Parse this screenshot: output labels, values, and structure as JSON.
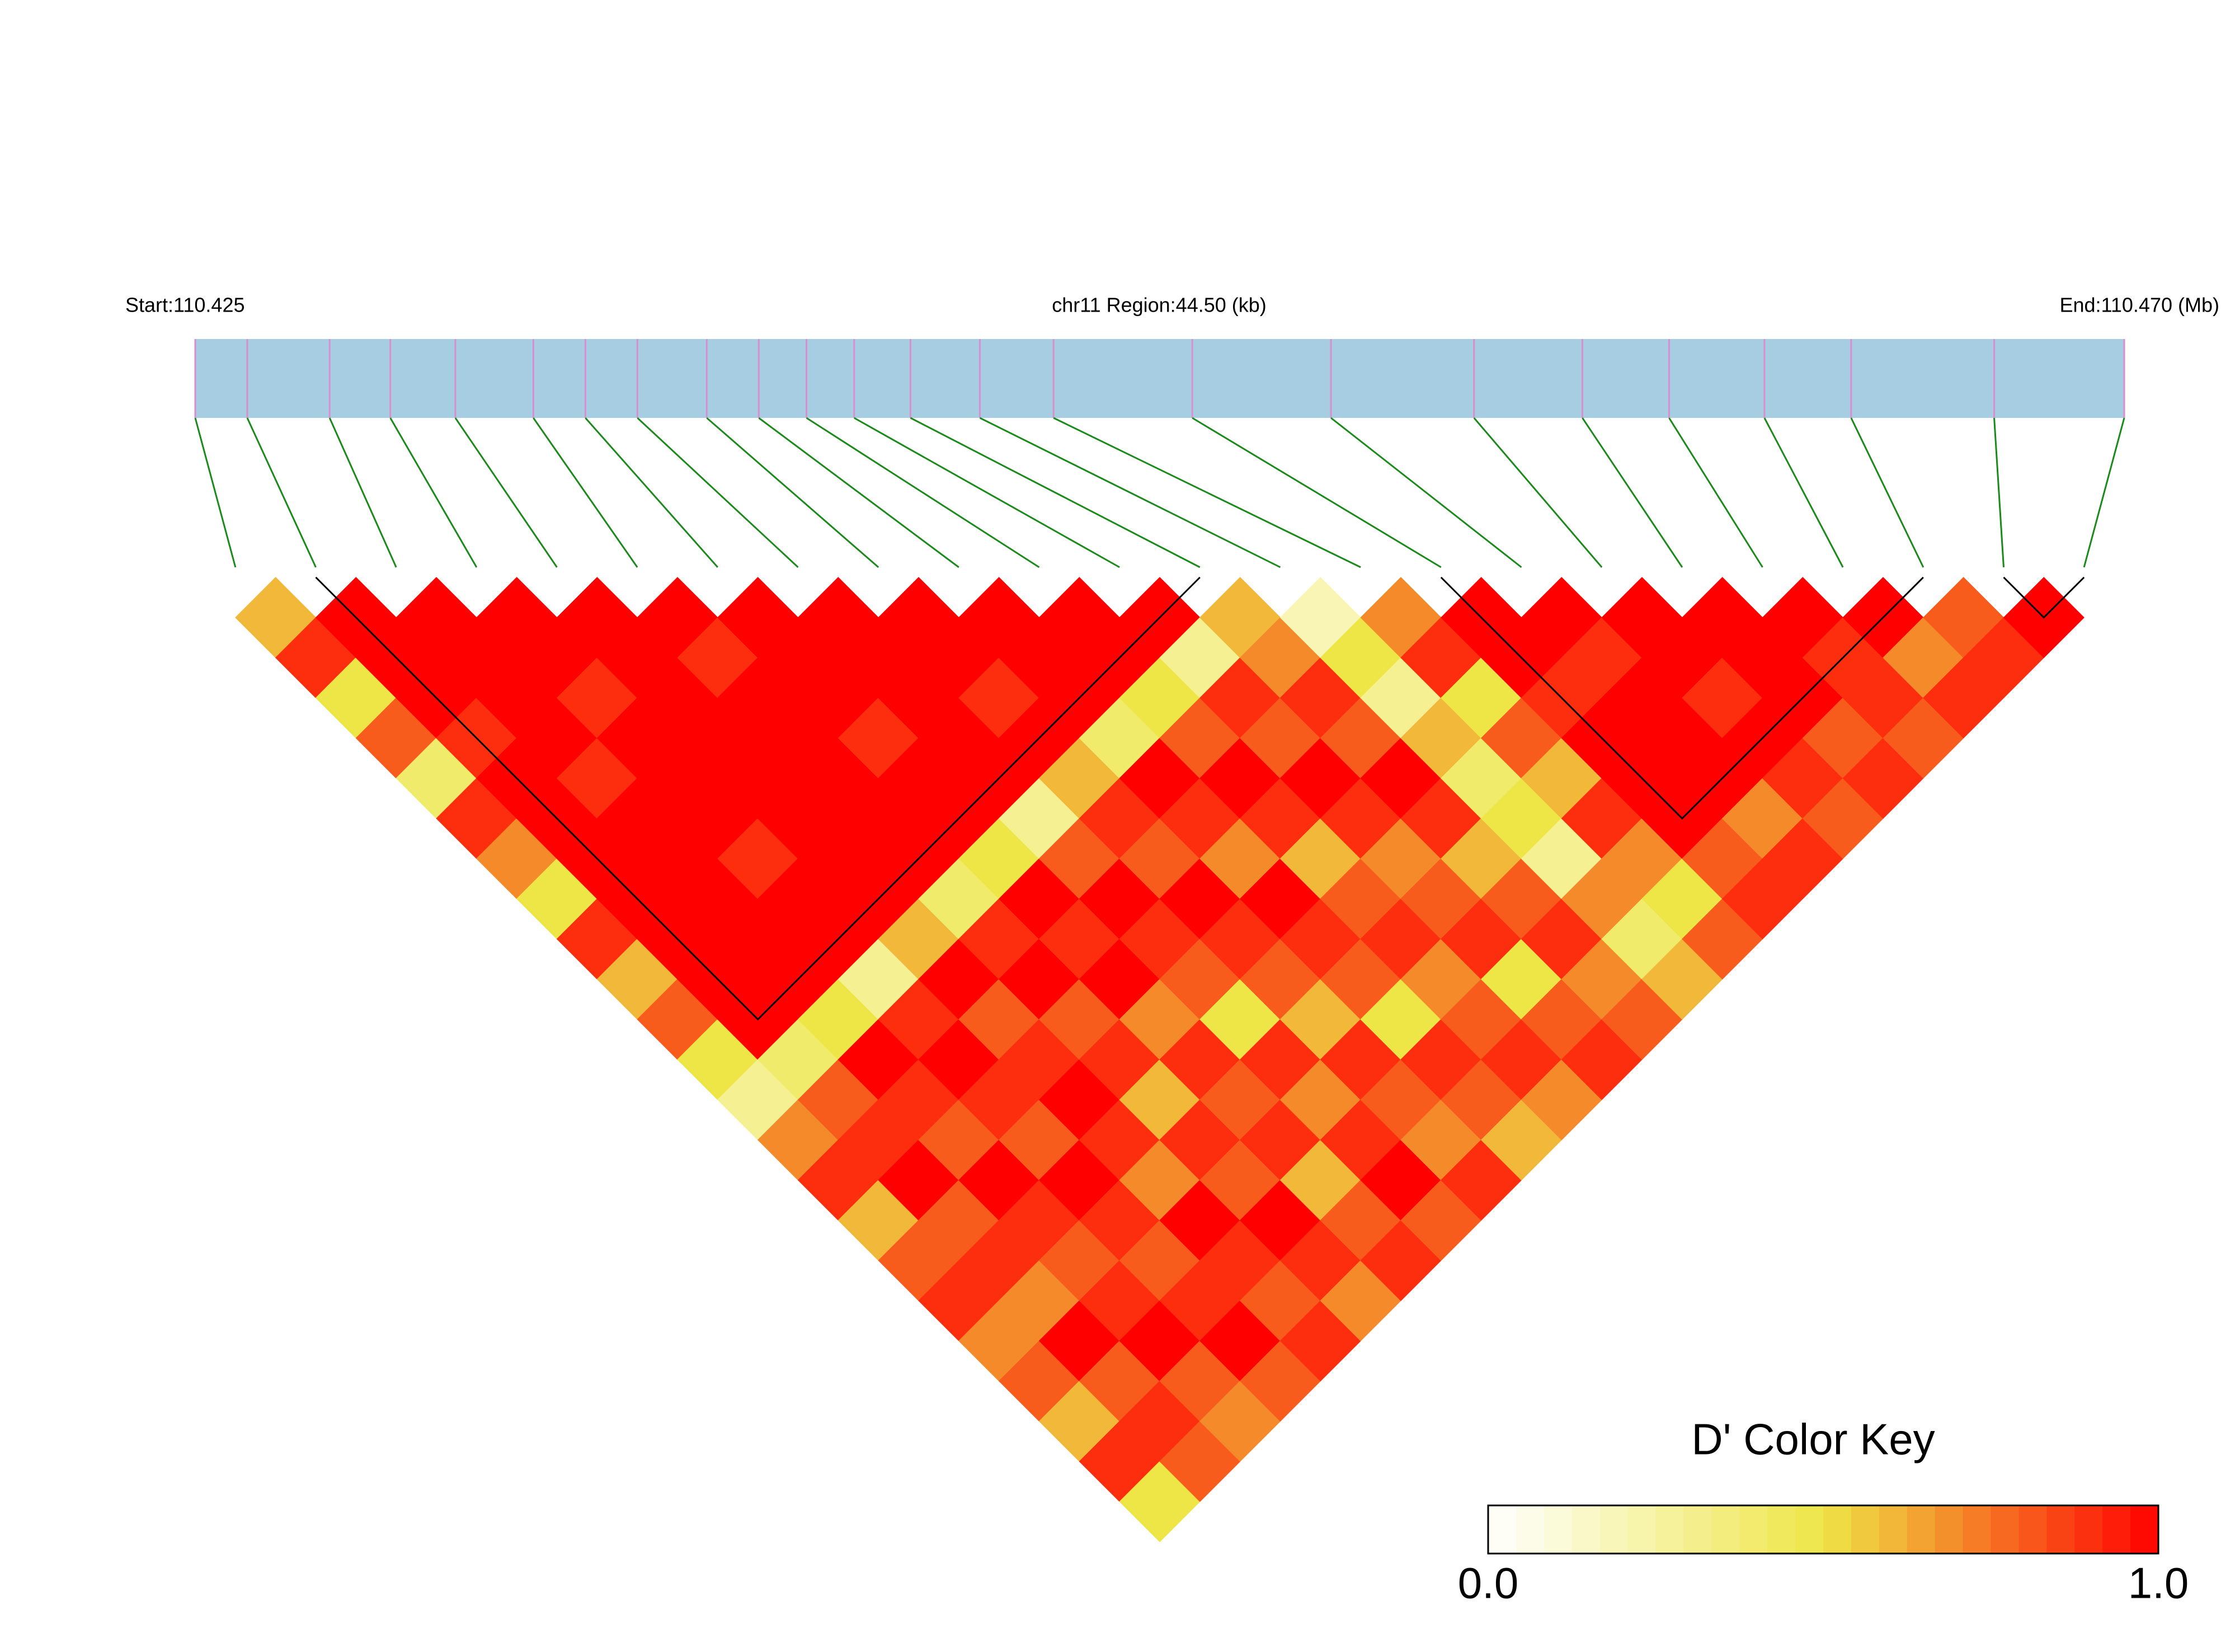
{
  "chart_data": {
    "type": "ld_heatmap",
    "start_label": "Start:110.425",
    "region_label": "chr11 Region:44.50 (kb)",
    "end_label": "End:110.470 (Mb)",
    "xlim": [
      110.425,
      110.4695
    ],
    "snp_positions": [
      110.425,
      110.4262,
      110.4281,
      110.4295,
      110.431,
      110.4328,
      110.434,
      110.4352,
      110.4368,
      110.438,
      110.4391,
      110.4402,
      110.4415,
      110.4431,
      110.4448,
      110.448,
      110.4512,
      110.4545,
      110.457,
      110.459,
      110.4612,
      110.4632,
      110.4665,
      110.4695
    ],
    "dprime": [
      [
        0.6,
        0.9,
        0.5,
        0.8,
        0.4,
        0.9,
        0.7,
        0.5,
        0.9,
        0.6,
        0.8,
        0.5,
        0.3,
        0.7,
        0.9,
        0.6,
        0.8,
        0.9,
        0.7,
        0.8,
        0.6,
        0.9,
        0.5
      ],
      [
        1,
        1,
        1,
        0.9,
        1,
        1,
        1,
        1,
        1,
        1,
        1,
        0.4,
        0.8,
        0.9,
        1,
        0.8,
        0.9,
        0.7,
        1,
        0.8,
        0.9,
        0.8
      ],
      [
        1,
        1,
        1,
        1,
        0.9,
        1,
        1,
        1,
        1,
        1,
        0.5,
        1,
        0.9,
        0.8,
        1,
        0.9,
        0.8,
        0.9,
        1,
        0.8,
        0.7
      ],
      [
        1,
        1,
        0.9,
        1,
        1,
        1,
        0.9,
        1,
        1,
        0.3,
        0.9,
        1,
        0.9,
        0.8,
        1,
        0.9,
        0.8,
        0.9,
        1,
        0.8
      ],
      [
        1,
        1,
        1,
        1,
        1,
        1,
        1,
        1,
        0.6,
        1,
        0.8,
        0.9,
        1,
        0.9,
        0.7,
        1,
        0.9,
        0.8,
        0.9
      ],
      [
        1,
        0.9,
        1,
        1,
        1,
        1,
        1,
        0.4,
        0.9,
        1,
        0.8,
        0.9,
        0.6,
        0.9,
        0.8,
        1,
        0.9,
        0.7
      ],
      [
        1,
        1,
        1,
        0.9,
        1,
        1,
        0.5,
        1,
        0.9,
        1,
        0.7,
        0.9,
        0.8,
        0.9,
        0.6,
        0.8,
        0.9
      ],
      [
        1,
        1,
        1,
        1,
        1,
        0.3,
        0.8,
        1,
        0.9,
        0.8,
        0.5,
        0.9,
        0.7,
        0.9,
        1,
        0.8
      ],
      [
        1,
        1,
        0.9,
        1,
        0.6,
        0.9,
        0.8,
        1,
        0.9,
        0.8,
        0.6,
        0.9,
        0.8,
        0.7,
        0.9
      ],
      [
        1,
        1,
        1,
        0.4,
        1,
        0.9,
        0.7,
        1,
        0.9,
        0.8,
        0.5,
        0.9,
        0.8,
        0.6
      ],
      [
        1,
        1,
        0.5,
        0.8,
        1,
        0.9,
        0.6,
        0.8,
        0.9,
        0.7,
        0.8,
        0.9,
        0.7
      ],
      [
        1,
        0.3,
        0.9,
        0.8,
        1,
        0.9,
        0.7,
        0.8,
        0.9,
        0.5,
        0.8,
        0.9
      ],
      [
        0.6,
        0.7,
        0.9,
        0.8,
        1,
        0.9,
        0.6,
        0.8,
        0.9,
        0.7,
        0.8
      ],
      [
        0.2,
        0.5,
        0.3,
        0.6,
        0.4,
        0.5,
        0.3,
        0.7,
        0.4,
        0.6
      ],
      [
        0.7,
        0.9,
        0.5,
        0.8,
        0.6,
        0.9,
        0.7,
        0.5,
        0.8
      ],
      [
        1,
        1,
        0.9,
        1,
        1,
        1,
        0.8,
        0.9
      ],
      [
        1,
        0.9,
        1,
        1,
        1,
        0.7,
        0.9
      ],
      [
        1,
        1,
        0.9,
        1,
        0.9,
        0.8
      ],
      [
        1,
        1,
        1,
        0.8,
        0.9
      ],
      [
        1,
        0.9,
        0.9,
        0.8
      ],
      [
        1,
        0.7,
        0.9
      ],
      [
        0.8,
        0.9
      ],
      [
        1
      ]
    ],
    "blocks": [
      [
        1,
        12
      ],
      [
        15,
        21
      ],
      [
        22,
        23
      ]
    ],
    "bar_color": "#a6cde2",
    "snp_line_color": "#d98fcf",
    "link_color": "#1a8a1a",
    "block_outline_color": "#000000",
    "colorscale": [
      "#ffffff",
      "#eee647",
      "#ff0000"
    ],
    "colorbar": {
      "title": "D' Color Key",
      "clim": [
        0,
        1
      ],
      "ticks": [
        {
          "value": 0,
          "label": "0.0"
        },
        {
          "value": 1,
          "label": "1.0"
        }
      ]
    }
  }
}
